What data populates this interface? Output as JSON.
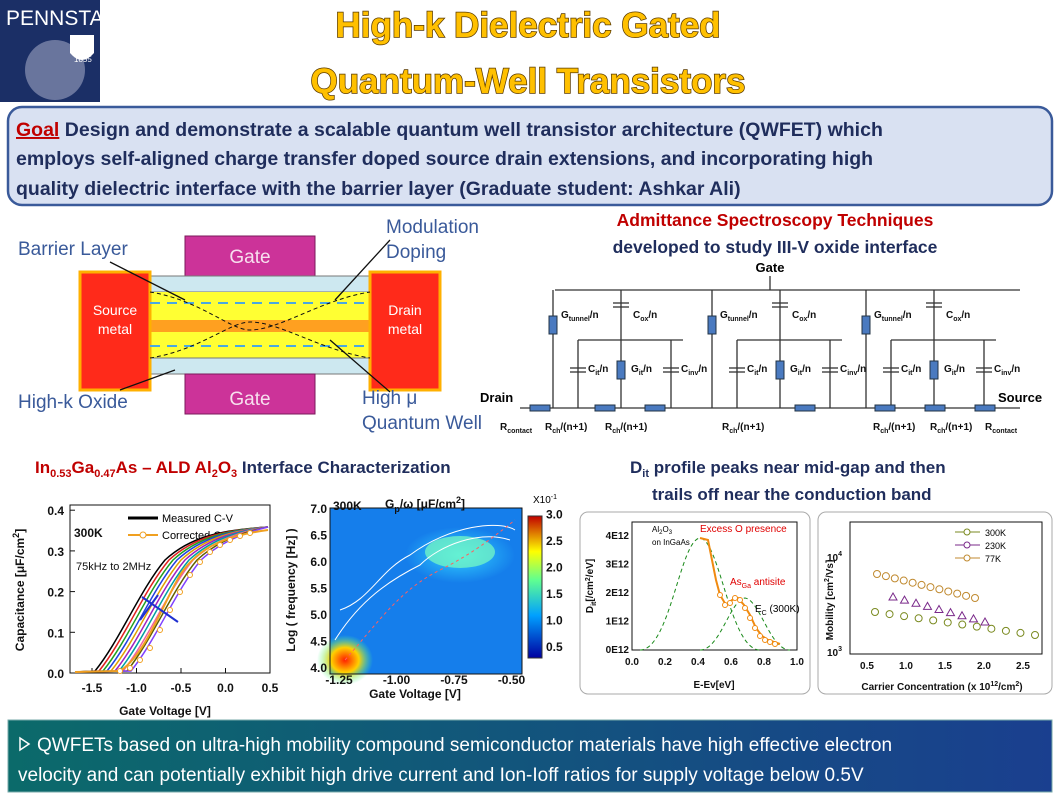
{
  "header": {
    "logo": "PENNSTATE",
    "year": "1855",
    "title": [
      "High-k Dielectric Gated",
      "Quantum-Well Transistors"
    ]
  },
  "goal": {
    "label": "Goal",
    "lines": [
      "Design and demonstrate a scalable quantum well transistor architecture (QWFET) which",
      "employs self-aligned charge transfer doped source drain extensions,  and incorporating high",
      "quality dielectric interface with the barrier layer (Graduate student: Ashkar Ali)"
    ]
  },
  "device": {
    "gate_top": "Gate",
    "gate_bottom": "Gate",
    "source": [
      "Source",
      "metal"
    ],
    "drain": [
      "Drain",
      "metal"
    ],
    "barrier": "Barrier Layer",
    "modulation": [
      "Modulation",
      "Doping"
    ],
    "oxide": "High-k Oxide",
    "well": [
      "High μ",
      "Quantum Well"
    ]
  },
  "admittance": {
    "title": "Admittance Spectroscopy Techniques",
    "subtitle": "developed to study III-V oxide interface"
  },
  "circuit": {
    "gate": "Gate",
    "drain": "Drain",
    "source": "Source",
    "g_tunnel": [
      "G",
      "tunnel",
      "/n"
    ],
    "c_ox": [
      "C",
      "ox",
      "/n"
    ],
    "c_it": [
      "C",
      "it",
      "/n"
    ],
    "g_it": [
      "G",
      "it",
      "/n"
    ],
    "c_inv": [
      "C",
      "inv",
      "/n"
    ],
    "r_contact": [
      "R",
      "contact"
    ],
    "r_ch": [
      "R",
      "ch",
      "/(n+1)"
    ]
  },
  "interface": {
    "title": [
      "In",
      "0.53",
      "Ga",
      "0.47",
      "As – ALD Al",
      "2",
      "O",
      "3",
      " Interface Characterization"
    ]
  },
  "cv_plot": {
    "ylabel": [
      "Capacitance [μF/cm",
      "2",
      "]"
    ],
    "xlabel": "Gate Voltage [V]",
    "yticks": [
      "0.0",
      "0.1",
      "0.2",
      "0.3",
      "0.4"
    ],
    "xticks": [
      "-1.5",
      "-1.0",
      "-0.5",
      "0.0",
      "0.5"
    ],
    "legend": [
      "Measured C-V",
      "Corrected C-V"
    ],
    "temp": "300K",
    "freq": "75kHz to 2MHz"
  },
  "gp_map": {
    "temp": "300K",
    "title": [
      "G",
      "p",
      "/ω [μF/cm",
      "2",
      "]"
    ],
    "ylabel": "Log ( frequency [Hz] )",
    "xlabel": "Gate Voltage [V]",
    "yticks": [
      "4.0",
      "4.5",
      "5.0",
      "5.5",
      "6.0",
      "6.5",
      "7.0"
    ],
    "xticks": [
      "-1.25",
      "-1.00",
      "-0.75",
      "-0.50"
    ],
    "scale": [
      "X10",
      "-1"
    ],
    "cticks": [
      "0.5",
      "1.0",
      "1.5",
      "2.0",
      "2.5",
      "3.0"
    ]
  },
  "dit": {
    "title": [
      "D",
      "it",
      " profile peaks near mid-gap and then"
    ],
    "line2": "trails off near the conduction band"
  },
  "dit_plot": {
    "ylabel": [
      "D",
      "it",
      "[/cm",
      "2",
      "/eV]"
    ],
    "xlabel": "E-Ev[eV]",
    "yticks": [
      "0E12",
      "1E12",
      "2E12",
      "3E12",
      "4E12"
    ],
    "xticks": [
      "0.0",
      "0.2",
      "0.4",
      "0.6",
      "0.8",
      "1.0"
    ],
    "legend": [
      "Al",
      "2",
      "O",
      "3",
      "on InGaAs"
    ],
    "excess": "Excess O presence",
    "antisite": [
      "As",
      "Ga",
      " antisite"
    ],
    "ec": [
      "E",
      "C",
      " (300K)"
    ]
  },
  "mobility_plot": {
    "ylabel": [
      "Mobility [cm",
      "2",
      "/Vs]"
    ],
    "xlabel": [
      "Carrier Concentration (x 10",
      "12",
      "/cm",
      "2",
      ")"
    ],
    "xticks": [
      "0.5",
      "1.0",
      "1.5",
      "2.0",
      "2.5"
    ],
    "yticks": [
      [
        "10",
        "3"
      ],
      [
        "10",
        "4"
      ]
    ],
    "legend": [
      "300K",
      "230K",
      "77K"
    ]
  },
  "footer": {
    "lines": [
      "QWFETs based on ultra-high mobility  compound semiconductor materials have high effective electron",
      "velocity and  can potentially exhibit high drive  current  and Ion-Ioff ratios for supply voltage below 0.5V"
    ]
  }
}
